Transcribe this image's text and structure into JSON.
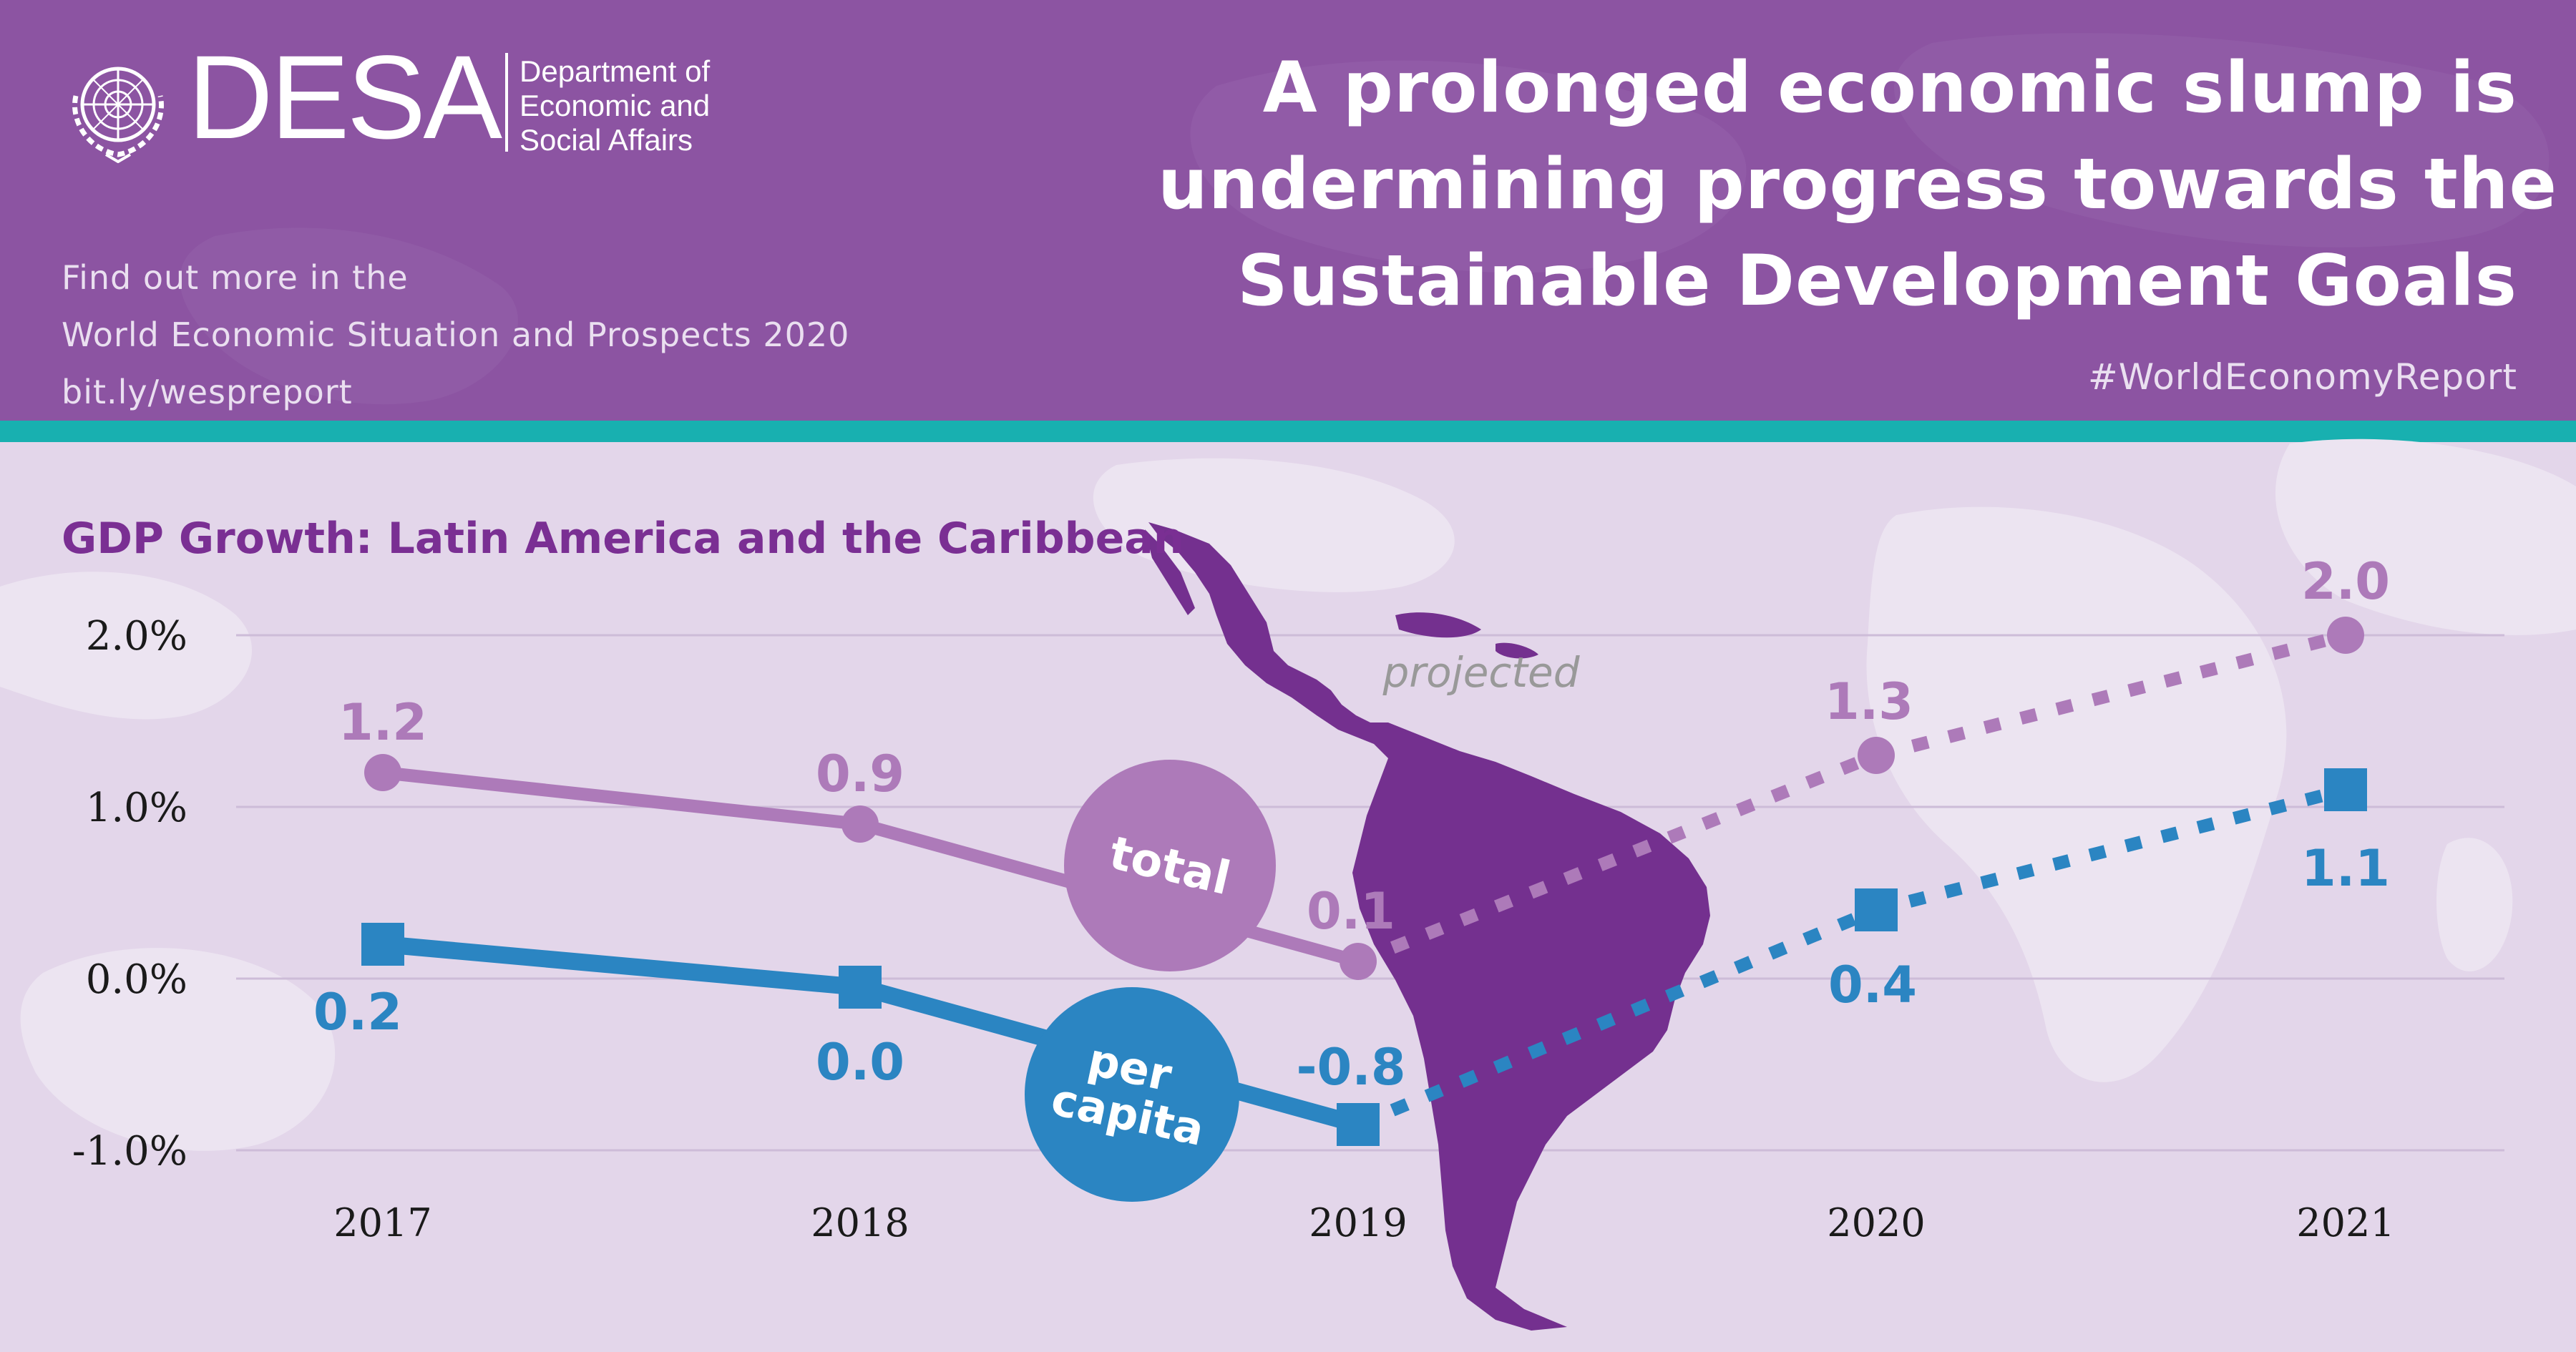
{
  "header": {
    "logo_text": "DESA",
    "department_lines": [
      "Department of",
      "Economic and",
      "Social Affairs"
    ],
    "find_out_lines": [
      "Find out more in the",
      "World Economic Situation and Prospects 2020",
      "bit.ly/wespreport"
    ],
    "headline_lines": [
      "A prolonged economic slump is",
      "undermining progress towards the",
      "Sustainable Development Goals"
    ],
    "hashtag": "#WorldEconomyReport"
  },
  "colors": {
    "header_purple": "#8c54a2",
    "accent_teal": "#18b0b0",
    "total_series": "#ad7ab9",
    "per_capita_series": "#2b85c2",
    "continent": "#74308f",
    "title_purple": "#7a2f93"
  },
  "chart_data": {
    "type": "line",
    "title": "GDP Growth: Latin America and the Caribbean",
    "x": [
      "2017",
      "2018",
      "2019",
      "2020",
      "2021"
    ],
    "ylim": [
      -1.0,
      2.0
    ],
    "yticks": [
      2.0,
      1.0,
      0.0,
      -1.0
    ],
    "ytick_labels": [
      "2.0%",
      "1.0%",
      "0.0%",
      "-1.0%"
    ],
    "grid": true,
    "annotation": "projected",
    "projection_starts_after": "2019",
    "series": [
      {
        "name": "total",
        "values": [
          1.2,
          0.9,
          0.1,
          1.3,
          2.0
        ],
        "labels": [
          "1.2",
          "0.9",
          "0.1",
          "1.3",
          "2.0"
        ],
        "marker": "circle"
      },
      {
        "name": "per capita",
        "values": [
          0.2,
          -0.05,
          -0.85,
          0.4,
          1.1
        ],
        "labels": [
          "0.2",
          "0.0",
          "-0.8",
          "0.4",
          "1.1"
        ],
        "marker": "square"
      }
    ]
  }
}
